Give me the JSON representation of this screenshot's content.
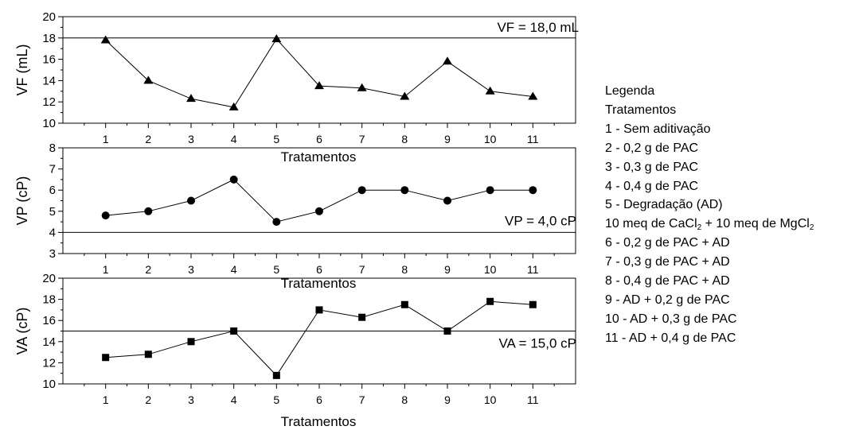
{
  "chart_data": [
    {
      "type": "line",
      "marker": "triangle",
      "ylabel": "VF (mL)",
      "xlabel": "Tratamentos",
      "categories": [
        "1",
        "2",
        "3",
        "4",
        "5",
        "6",
        "7",
        "8",
        "9",
        "10",
        "11"
      ],
      "values": [
        17.8,
        14.0,
        12.3,
        11.5,
        17.9,
        13.5,
        13.3,
        12.5,
        15.8,
        13.0,
        12.5
      ],
      "ylim": [
        10,
        20
      ],
      "yticks": [
        "10",
        "12",
        "14",
        "16",
        "18",
        "20"
      ],
      "reference": {
        "value": 18.0,
        "label": "VF = 18,0 mL"
      }
    },
    {
      "type": "line",
      "marker": "circle",
      "ylabel": "VP (cP)",
      "xlabel": "Tratamentos",
      "categories": [
        "1",
        "2",
        "3",
        "4",
        "5",
        "6",
        "7",
        "8",
        "9",
        "10",
        "11"
      ],
      "values": [
        4.8,
        5.0,
        5.5,
        6.5,
        4.5,
        5.0,
        6.0,
        6.0,
        5.5,
        6.0,
        6.0
      ],
      "ylim": [
        3,
        8
      ],
      "yticks": [
        "3",
        "4",
        "5",
        "6",
        "7",
        "8"
      ],
      "reference": {
        "value": 4.0,
        "label": "VP = 4,0 cP"
      }
    },
    {
      "type": "line",
      "marker": "square",
      "ylabel": "VA (cP)",
      "xlabel": "Tratamentos",
      "categories": [
        "1",
        "2",
        "3",
        "4",
        "5",
        "6",
        "7",
        "8",
        "9",
        "10",
        "11"
      ],
      "values": [
        12.5,
        12.8,
        14.0,
        15.0,
        10.8,
        17.0,
        16.3,
        17.5,
        15.0,
        17.8,
        17.5
      ],
      "ylim": [
        10,
        20
      ],
      "yticks": [
        "10",
        "12",
        "14",
        "16",
        "18",
        "20"
      ],
      "reference": {
        "value": 15.0,
        "label": "VA = 15,0 cP"
      }
    }
  ],
  "legend": {
    "title": "Legenda",
    "subtitle": "Tratamentos",
    "items": [
      "1 - Sem aditivação",
      "2 - 0,2 g de PAC",
      "3 - 0,3 g de PAC",
      "4 - 0,4 g de PAC",
      "5 - Degradação (AD)",
      "",
      "6 - 0,2 g de PAC + AD",
      "7 - 0,3 g de PAC + AD",
      "8 - 0,4 g de PAC + AD",
      "9 - AD + 0,2 g de PAC",
      "10 - AD + 0,3 g de PAC",
      "11 - AD + 0,4 g de PAC"
    ],
    "salts_line": {
      "a": "10 meq de CaCl",
      "a_sub": "2",
      "b": " + 10 meq de MgCl",
      "b_sub": "2"
    }
  },
  "colors": {
    "line": "#000000",
    "background": "#ffffff"
  }
}
